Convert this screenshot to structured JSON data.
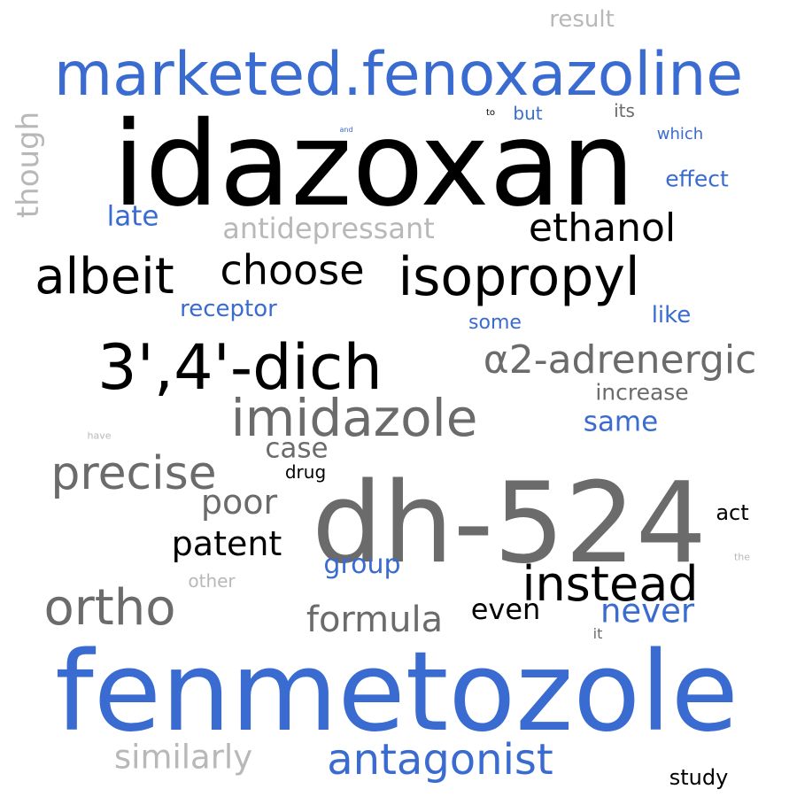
{
  "palette": {
    "blue": "#3a6bd1",
    "black": "#000000",
    "dark_gray": "#6b6b6b",
    "light_gray": "#b8b8b8"
  },
  "words": [
    {
      "text": "result",
      "color": "light_gray"
    },
    {
      "text": "marketed.fenoxazoline",
      "color": "blue"
    },
    {
      "text": "idazoxan",
      "color": "black"
    },
    {
      "text": "though",
      "color": "light_gray"
    },
    {
      "text": "to",
      "color": "black"
    },
    {
      "text": "but",
      "color": "blue"
    },
    {
      "text": "its",
      "color": "dark_gray"
    },
    {
      "text": "and",
      "color": "blue"
    },
    {
      "text": "which",
      "color": "blue"
    },
    {
      "text": "effect",
      "color": "blue"
    },
    {
      "text": "late",
      "color": "blue"
    },
    {
      "text": "antidepressant",
      "color": "light_gray"
    },
    {
      "text": "ethanol",
      "color": "black"
    },
    {
      "text": "albeit",
      "color": "black"
    },
    {
      "text": "choose",
      "color": "black"
    },
    {
      "text": "isopropyl",
      "color": "black"
    },
    {
      "text": "receptor",
      "color": "blue"
    },
    {
      "text": "like",
      "color": "blue"
    },
    {
      "text": "some",
      "color": "blue"
    },
    {
      "text": "3',4'-dich",
      "color": "black"
    },
    {
      "text": "α2-adrenergic",
      "color": "dark_gray"
    },
    {
      "text": "increase",
      "color": "dark_gray"
    },
    {
      "text": "imidazole",
      "color": "dark_gray"
    },
    {
      "text": "same",
      "color": "blue"
    },
    {
      "text": "have",
      "color": "light_gray"
    },
    {
      "text": "case",
      "color": "dark_gray"
    },
    {
      "text": "precise",
      "color": "dark_gray"
    },
    {
      "text": "drug",
      "color": "black"
    },
    {
      "text": "dh-524",
      "color": "dark_gray"
    },
    {
      "text": "poor",
      "color": "dark_gray"
    },
    {
      "text": "act",
      "color": "black"
    },
    {
      "text": "patent",
      "color": "black"
    },
    {
      "text": "group",
      "color": "blue"
    },
    {
      "text": "the",
      "color": "light_gray"
    },
    {
      "text": "other",
      "color": "light_gray"
    },
    {
      "text": "instead",
      "color": "black"
    },
    {
      "text": "ortho",
      "color": "dark_gray"
    },
    {
      "text": "formula",
      "color": "dark_gray"
    },
    {
      "text": "even",
      "color": "black"
    },
    {
      "text": "never",
      "color": "blue"
    },
    {
      "text": "it",
      "color": "dark_gray"
    },
    {
      "text": "fenmetozole",
      "color": "blue"
    },
    {
      "text": "similarly",
      "color": "light_gray"
    },
    {
      "text": "antagonist",
      "color": "blue"
    },
    {
      "text": "study",
      "color": "black"
    }
  ]
}
